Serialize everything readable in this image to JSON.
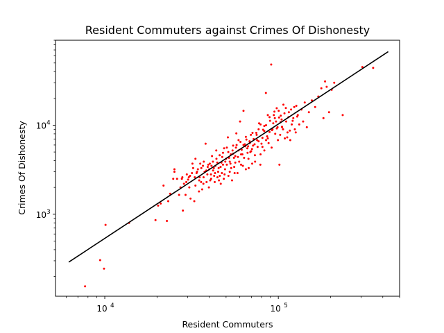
{
  "chart_data": {
    "type": "scatter",
    "title": "Resident Commuters against Crimes Of Dishonesty",
    "xlabel": "Resident Commuters",
    "ylabel": "Crimes Of Dishonesty",
    "x_scale": "log",
    "y_scale": "log",
    "xlim": [
      5200,
      500000
    ],
    "ylim": [
      120,
      90000
    ],
    "x_major_ticks": [
      {
        "value": 10000,
        "label": "10",
        "exp": "4"
      },
      {
        "value": 100000,
        "label": "10",
        "exp": "5"
      }
    ],
    "y_major_ticks": [
      {
        "value": 1000,
        "label": "10",
        "exp": "3"
      },
      {
        "value": 10000,
        "label": "10",
        "exp": "4"
      }
    ],
    "grid": false,
    "colors": {
      "points": "#ff0000",
      "fit_line": "#000000"
    },
    "fit_line": {
      "x": [
        6200,
        430000
      ],
      "y": [
        290,
        67000
      ]
    },
    "points": [
      [
        7700,
        155
      ],
      [
        9400,
        305
      ],
      [
        9900,
        245
      ],
      [
        10100,
        760
      ],
      [
        13800,
        800
      ],
      [
        19600,
        860
      ],
      [
        20300,
        1250
      ],
      [
        21000,
        1320
      ],
      [
        21800,
        2100
      ],
      [
        22800,
        840
      ],
      [
        23200,
        1400
      ],
      [
        23800,
        1700
      ],
      [
        24800,
        2500
      ],
      [
        25200,
        3000
      ],
      [
        25200,
        3200
      ],
      [
        26100,
        2500
      ],
      [
        26800,
        1650
      ],
      [
        27300,
        2000
      ],
      [
        27800,
        2500
      ],
      [
        28200,
        1100
      ],
      [
        28600,
        2200
      ],
      [
        29200,
        1650
      ],
      [
        29700,
        2800
      ],
      [
        30200,
        2450
      ],
      [
        30700,
        2000
      ],
      [
        31200,
        1500
      ],
      [
        31800,
        2900
      ],
      [
        32300,
        3300
      ],
      [
        32800,
        1400
      ],
      [
        33300,
        2100
      ],
      [
        33300,
        4200
      ],
      [
        34400,
        3200
      ],
      [
        34900,
        1800
      ],
      [
        35500,
        3700
      ],
      [
        35900,
        2300
      ],
      [
        36400,
        1900
      ],
      [
        37100,
        2600
      ],
      [
        37600,
        3000
      ],
      [
        38100,
        6200
      ],
      [
        38600,
        2300
      ],
      [
        39200,
        3400
      ],
      [
        39800,
        2000
      ],
      [
        40300,
        3700
      ],
      [
        40900,
        2800
      ],
      [
        41500,
        4500
      ],
      [
        42100,
        3100
      ],
      [
        42700,
        2700
      ],
      [
        43400,
        3500
      ],
      [
        43900,
        5200
      ],
      [
        44600,
        2600
      ],
      [
        45300,
        3300
      ],
      [
        45900,
        4600
      ],
      [
        46600,
        2200
      ],
      [
        47300,
        2900
      ],
      [
        48000,
        3600
      ],
      [
        48700,
        5500
      ],
      [
        49300,
        3200
      ],
      [
        50000,
        4200
      ],
      [
        51200,
        7300
      ],
      [
        51600,
        2700
      ],
      [
        52500,
        3900
      ],
      [
        53300,
        4700
      ],
      [
        54100,
        2400
      ],
      [
        54900,
        5900
      ],
      [
        55700,
        3400
      ],
      [
        56500,
        4500
      ],
      [
        57300,
        8100
      ],
      [
        58200,
        2900
      ],
      [
        59000,
        5200
      ],
      [
        60200,
        11000
      ],
      [
        61000,
        3600
      ],
      [
        62100,
        4700
      ],
      [
        63000,
        14500
      ],
      [
        64100,
        6100
      ],
      [
        65000,
        3200
      ],
      [
        66300,
        5500
      ],
      [
        67300,
        4200
      ],
      [
        68300,
        6600
      ],
      [
        69700,
        5100
      ],
      [
        70700,
        3700
      ],
      [
        72100,
        7000
      ],
      [
        73300,
        4600
      ],
      [
        74700,
        8200
      ],
      [
        76000,
        5700
      ],
      [
        77500,
        10500
      ],
      [
        78800,
        3600
      ],
      [
        80000,
        6200
      ],
      [
        81700,
        8900
      ],
      [
        83100,
        5200
      ],
      [
        84800,
        23000
      ],
      [
        86200,
        7500
      ],
      [
        87900,
        6300
      ],
      [
        89600,
        11200
      ],
      [
        91000,
        48000
      ],
      [
        92600,
        9000
      ],
      [
        94200,
        13000
      ],
      [
        96000,
        8000
      ],
      [
        97900,
        15500
      ],
      [
        99500,
        6800
      ],
      [
        101500,
        3600
      ],
      [
        103300,
        12800
      ],
      [
        105200,
        9500
      ],
      [
        107000,
        17000
      ],
      [
        109000,
        7100
      ],
      [
        111000,
        11000
      ],
      [
        113000,
        8300
      ],
      [
        115000,
        14000
      ],
      [
        117200,
        6800
      ],
      [
        119500,
        10200
      ],
      [
        122000,
        12000
      ],
      [
        124500,
        9000
      ],
      [
        127000,
        16500
      ],
      [
        129500,
        13000
      ],
      [
        132000,
        10200
      ],
      [
        136000,
        15000
      ],
      [
        139000,
        11000
      ],
      [
        142000,
        18000
      ],
      [
        146000,
        9500
      ],
      [
        150000,
        14000
      ],
      [
        156000,
        19000
      ],
      [
        163000,
        16000
      ],
      [
        170000,
        21000
      ],
      [
        177000,
        26000
      ],
      [
        182000,
        12000
      ],
      [
        186000,
        31000
      ],
      [
        190000,
        27000
      ],
      [
        196000,
        14000
      ],
      [
        203000,
        25000
      ],
      [
        210000,
        30000
      ],
      [
        235000,
        13000
      ],
      [
        305000,
        45000
      ],
      [
        352000,
        44000
      ],
      [
        31000,
        2700
      ],
      [
        34000,
        3000
      ],
      [
        36000,
        3300
      ],
      [
        37000,
        2200
      ],
      [
        39000,
        2800
      ],
      [
        40000,
        3200
      ],
      [
        41000,
        2500
      ],
      [
        42000,
        3900
      ],
      [
        43000,
        2300
      ],
      [
        44000,
        4200
      ],
      [
        45000,
        3000
      ],
      [
        46000,
        2700
      ],
      [
        47000,
        3800
      ],
      [
        48000,
        4900
      ],
      [
        49000,
        2800
      ],
      [
        50500,
        3600
      ],
      [
        52000,
        4300
      ],
      [
        53500,
        3300
      ],
      [
        55000,
        4800
      ],
      [
        56000,
        2900
      ],
      [
        57500,
        6000
      ],
      [
        59500,
        3900
      ],
      [
        61500,
        5300
      ],
      [
        63500,
        4300
      ],
      [
        65500,
        6900
      ],
      [
        67500,
        3300
      ],
      [
        69500,
        7800
      ],
      [
        71500,
        5900
      ],
      [
        73500,
        3900
      ],
      [
        75500,
        6800
      ],
      [
        77000,
        9000
      ],
      [
        79000,
        4700
      ],
      [
        81000,
        7200
      ],
      [
        83000,
        9800
      ],
      [
        85000,
        6800
      ],
      [
        87000,
        13000
      ],
      [
        89000,
        8400
      ],
      [
        91500,
        5600
      ],
      [
        93500,
        10500
      ],
      [
        95500,
        12000
      ],
      [
        98000,
        9200
      ],
      [
        100500,
        14500
      ],
      [
        102500,
        7800
      ],
      [
        104500,
        11600
      ],
      [
        106500,
        9000
      ],
      [
        108500,
        13600
      ],
      [
        110500,
        15600
      ],
      [
        112500,
        7300
      ],
      [
        114500,
        12300
      ],
      [
        116500,
        8700
      ],
      [
        118500,
        15000
      ],
      [
        121000,
        11200
      ],
      [
        123500,
        16000
      ],
      [
        126000,
        8300
      ],
      [
        128500,
        12500
      ],
      [
        33000,
        2600
      ],
      [
        35000,
        2400
      ],
      [
        36800,
        3500
      ],
      [
        38500,
        3100
      ],
      [
        40500,
        2400
      ],
      [
        42500,
        3300
      ],
      [
        44500,
        3800
      ],
      [
        46500,
        3400
      ],
      [
        48500,
        2500
      ],
      [
        50500,
        5600
      ],
      [
        52500,
        3000
      ],
      [
        54500,
        5200
      ],
      [
        56500,
        3800
      ],
      [
        58500,
        4400
      ],
      [
        60500,
        6500
      ],
      [
        62500,
        3500
      ],
      [
        64500,
        5800
      ],
      [
        66500,
        4900
      ],
      [
        68500,
        6300
      ],
      [
        70500,
        5400
      ],
      [
        28000,
        2600
      ],
      [
        29500,
        2300
      ],
      [
        30500,
        2600
      ],
      [
        32000,
        3700
      ],
      [
        33800,
        2900
      ],
      [
        35200,
        2600
      ],
      [
        37200,
        3900
      ],
      [
        39500,
        3600
      ],
      [
        41200,
        3500
      ],
      [
        43200,
        2900
      ],
      [
        45500,
        2400
      ],
      [
        47500,
        4400
      ],
      [
        49500,
        3900
      ],
      [
        51500,
        5000
      ],
      [
        53000,
        3700
      ],
      [
        55500,
        4300
      ],
      [
        57000,
        5600
      ],
      [
        59000,
        6800
      ],
      [
        61000,
        4700
      ],
      [
        63000,
        6000
      ],
      [
        65000,
        7400
      ],
      [
        67000,
        5800
      ],
      [
        69000,
        5000
      ],
      [
        71000,
        8200
      ],
      [
        73000,
        6100
      ],
      [
        75000,
        7800
      ],
      [
        77000,
        6600
      ],
      [
        79000,
        10200
      ],
      [
        81000,
        5700
      ],
      [
        83000,
        8600
      ],
      [
        85000,
        10000
      ],
      [
        87000,
        7100
      ],
      [
        89000,
        12300
      ],
      [
        92000,
        8800
      ],
      [
        95000,
        14200
      ],
      [
        97000,
        11000
      ],
      [
        99000,
        9500
      ],
      [
        101000,
        12200
      ],
      [
        103000,
        10800
      ],
      [
        105000,
        9600
      ]
    ]
  }
}
